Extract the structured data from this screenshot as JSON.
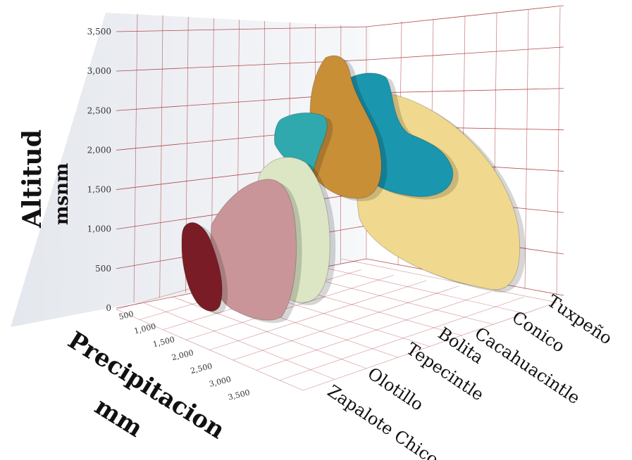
{
  "chart_data": {
    "type": "area",
    "projection": "3d",
    "y_axis": {
      "title": "Altitud",
      "unit": "msnm",
      "ticks": [
        "0",
        "500",
        "1,000",
        "1,500",
        "2,000",
        "2,500",
        "3,000",
        "3,500"
      ],
      "range": [
        0,
        3500
      ]
    },
    "x_axis": {
      "title": "Precipitacion",
      "unit": "mm",
      "ticks": [
        "500",
        "1,000",
        "1,500",
        "2,000",
        "2,500",
        "3,000",
        "3,500"
      ],
      "range": [
        500,
        3500
      ]
    },
    "categories": [
      "Zapalote Chico",
      "Olotillo",
      "Tepecintle",
      "Bolita",
      "Cacahuacintle",
      "Conico",
      "Tuxpeño"
    ],
    "grid": true,
    "series": [
      {
        "name": "Zapalote Chico",
        "color": "#7a1c25",
        "altitude_range": [
          100,
          1100
        ],
        "precipitation_range": [
          600,
          1000
        ]
      },
      {
        "name": "Olotillo",
        "color": "#c99598",
        "altitude_range": [
          0,
          1600
        ],
        "precipitation_range": [
          500,
          1800
        ]
      },
      {
        "name": "Tepecintle",
        "color": "#dce6c4",
        "altitude_range": [
          0,
          1900
        ],
        "precipitation_range": [
          800,
          2500
        ]
      },
      {
        "name": "Bolita",
        "color": "#2fa9ae",
        "altitude_range": [
          1800,
          2400
        ],
        "precipitation_range": [
          600,
          900
        ]
      },
      {
        "name": "Cacahuacintle",
        "color": "#c98f37",
        "altitude_range": [
          1600,
          3100
        ],
        "precipitation_range": [
          500,
          900
        ]
      },
      {
        "name": "Conico",
        "color": "#1a96ae",
        "altitude_range": [
          1600,
          2900
        ],
        "precipitation_range": [
          400,
          1000
        ]
      },
      {
        "name": "Tuxpeño",
        "color": "#f0d98f",
        "altitude_range": [
          0,
          2750
        ],
        "precipitation_range": [
          600,
          3500
        ]
      }
    ]
  }
}
